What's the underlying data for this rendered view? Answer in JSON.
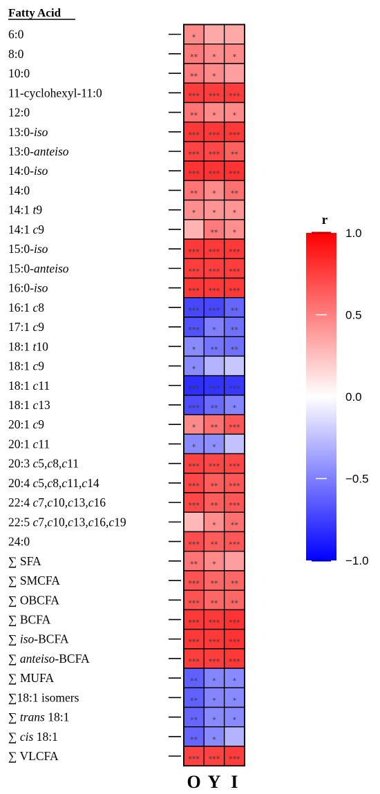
{
  "chart_data": {
    "type": "heatmap",
    "row_header": "Fatty Acid",
    "columns": [
      "O",
      "Y",
      "I"
    ],
    "legend": {
      "title": "r",
      "min": -1.0,
      "max": 1.0,
      "ticks": [
        "1.0",
        "0.5",
        "0.0",
        "−0.5",
        "−1.0"
      ],
      "tick_values": [
        1.0,
        0.5,
        0.0,
        -0.5,
        -1.0
      ],
      "colors": {
        "low": "#0000ff",
        "mid": "#ffffff",
        "high": "#ff0000"
      },
      "placement": "right"
    },
    "rows": [
      {
        "label": [
          [
            "6:0",
            false
          ]
        ],
        "values": [
          0.46,
          0.34,
          0.34
        ],
        "stars": [
          "*",
          "",
          ""
        ]
      },
      {
        "label": [
          [
            "8:0",
            false
          ]
        ],
        "values": [
          0.52,
          0.46,
          0.46
        ],
        "stars": [
          "**",
          "*",
          "*"
        ]
      },
      {
        "label": [
          [
            "10:0",
            false
          ]
        ],
        "values": [
          0.52,
          0.46,
          0.38
        ],
        "stars": [
          "**",
          "*",
          ""
        ]
      },
      {
        "label": [
          [
            "11-cyclohexyl-11:0",
            false
          ]
        ],
        "values": [
          0.76,
          0.76,
          0.76
        ],
        "stars": [
          "***",
          "***",
          "***"
        ]
      },
      {
        "label": [
          [
            "12:0",
            false
          ]
        ],
        "values": [
          0.54,
          0.46,
          0.46
        ],
        "stars": [
          "**",
          "*",
          "*"
        ]
      },
      {
        "label": [
          [
            "13:0-",
            false
          ],
          [
            "iso",
            true
          ]
        ],
        "values": [
          0.78,
          0.78,
          0.78
        ],
        "stars": [
          "***",
          "***",
          "***"
        ]
      },
      {
        "label": [
          [
            "13:0-",
            false
          ],
          [
            "anteiso",
            true
          ]
        ],
        "values": [
          0.74,
          0.72,
          0.62
        ],
        "stars": [
          "***",
          "***",
          "**"
        ]
      },
      {
        "label": [
          [
            "14:0-",
            false
          ],
          [
            "iso",
            true
          ]
        ],
        "values": [
          0.8,
          0.8,
          0.8
        ],
        "stars": [
          "***",
          "***",
          "***"
        ]
      },
      {
        "label": [
          [
            "14:0",
            false
          ]
        ],
        "values": [
          0.54,
          0.46,
          0.56
        ],
        "stars": [
          "**",
          "*",
          "**"
        ]
      },
      {
        "label": [
          [
            "14:1 ",
            false
          ],
          [
            "t",
            true
          ],
          [
            "9",
            false
          ]
        ],
        "values": [
          0.44,
          0.42,
          0.42
        ],
        "stars": [
          "*",
          "*",
          "*"
        ]
      },
      {
        "label": [
          [
            "14:1 ",
            false
          ],
          [
            "c",
            true
          ],
          [
            "9",
            false
          ]
        ],
        "values": [
          0.3,
          0.52,
          0.44
        ],
        "stars": [
          "",
          "**",
          "*"
        ]
      },
      {
        "label": [
          [
            "15:0-",
            false
          ],
          [
            "iso",
            true
          ]
        ],
        "values": [
          0.78,
          0.78,
          0.78
        ],
        "stars": [
          "***",
          "***",
          "***"
        ]
      },
      {
        "label": [
          [
            "15:0-",
            false
          ],
          [
            "anteiso",
            true
          ]
        ],
        "values": [
          0.76,
          0.76,
          0.76
        ],
        "stars": [
          "***",
          "***",
          "***"
        ]
      },
      {
        "label": [
          [
            "16:0-",
            false
          ],
          [
            "iso",
            true
          ]
        ],
        "values": [
          0.78,
          0.78,
          0.78
        ],
        "stars": [
          "***",
          "***",
          "***"
        ]
      },
      {
        "label": [
          [
            "16:1 ",
            false
          ],
          [
            "c",
            true
          ],
          [
            "8",
            false
          ]
        ],
        "values": [
          -0.72,
          -0.72,
          -0.6
        ],
        "stars": [
          "***",
          "***",
          "**"
        ]
      },
      {
        "label": [
          [
            "17:1 ",
            false
          ],
          [
            "c",
            true
          ],
          [
            "9",
            false
          ]
        ],
        "values": [
          -0.68,
          -0.5,
          -0.56
        ],
        "stars": [
          "***",
          "*",
          "**"
        ]
      },
      {
        "label": [
          [
            "18:1 ",
            false
          ],
          [
            "t",
            true
          ],
          [
            "10",
            false
          ]
        ],
        "values": [
          -0.46,
          -0.54,
          -0.56
        ],
        "stars": [
          "*",
          "**",
          "**"
        ]
      },
      {
        "label": [
          [
            "18:1 ",
            false
          ],
          [
            "c",
            true
          ],
          [
            "9",
            false
          ]
        ],
        "values": [
          -0.46,
          -0.3,
          -0.22
        ],
        "stars": [
          "*",
          "",
          ""
        ]
      },
      {
        "label": [
          [
            "18:1 ",
            false
          ],
          [
            "c",
            true
          ],
          [
            "11",
            false
          ]
        ],
        "values": [
          -0.82,
          -0.8,
          -0.78
        ],
        "stars": [
          "***",
          "***",
          "***"
        ]
      },
      {
        "label": [
          [
            "18:1 ",
            false
          ],
          [
            "c",
            true
          ],
          [
            "13",
            false
          ]
        ],
        "values": [
          -0.7,
          -0.58,
          -0.48
        ],
        "stars": [
          "***",
          "**",
          "*"
        ]
      },
      {
        "label": [
          [
            "20:1 ",
            false
          ],
          [
            "c",
            true
          ],
          [
            "9",
            false
          ]
        ],
        "values": [
          0.46,
          0.56,
          0.66
        ],
        "stars": [
          "*",
          "**",
          "***"
        ]
      },
      {
        "label": [
          [
            "20:1 ",
            false
          ],
          [
            "c",
            true
          ],
          [
            "11",
            false
          ]
        ],
        "values": [
          -0.46,
          -0.44,
          -0.24
        ],
        "stars": [
          "*",
          "*",
          ""
        ]
      },
      {
        "label": [
          [
            "20:3 ",
            false
          ],
          [
            "c",
            true
          ],
          [
            "5,",
            false
          ],
          [
            "c",
            true
          ],
          [
            "8,",
            false
          ],
          [
            "c",
            true
          ],
          [
            "11",
            false
          ]
        ],
        "values": [
          0.74,
          0.72,
          0.72
        ],
        "stars": [
          "***",
          "***",
          "***"
        ]
      },
      {
        "label": [
          [
            "20:4 ",
            false
          ],
          [
            "c",
            true
          ],
          [
            "5,",
            false
          ],
          [
            "c",
            true
          ],
          [
            "8,",
            false
          ],
          [
            "c",
            true
          ],
          [
            "11,",
            false
          ],
          [
            "c",
            true
          ],
          [
            "14",
            false
          ]
        ],
        "values": [
          0.72,
          0.64,
          0.66
        ],
        "stars": [
          "***",
          "**",
          "***"
        ]
      },
      {
        "label": [
          [
            "22:4 ",
            false
          ],
          [
            "c",
            true
          ],
          [
            "7,",
            false
          ],
          [
            "c",
            true
          ],
          [
            "10,",
            false
          ],
          [
            "c",
            true
          ],
          [
            "13,",
            false
          ],
          [
            "c",
            true
          ],
          [
            "16",
            false
          ]
        ],
        "values": [
          0.72,
          0.64,
          0.66
        ],
        "stars": [
          "***",
          "**",
          "***"
        ]
      },
      {
        "label": [
          [
            "22:5 ",
            false
          ],
          [
            "c",
            true
          ],
          [
            "7,",
            false
          ],
          [
            "c",
            true
          ],
          [
            "10,",
            false
          ],
          [
            "c",
            true
          ],
          [
            "13,",
            false
          ],
          [
            "c",
            true
          ],
          [
            "16,",
            false
          ],
          [
            "c",
            true
          ],
          [
            "19",
            false
          ]
        ],
        "values": [
          0.28,
          0.44,
          0.56
        ],
        "stars": [
          "",
          "*",
          "**"
        ]
      },
      {
        "label": [
          [
            "24:0",
            false
          ]
        ],
        "values": [
          0.7,
          0.64,
          0.66
        ],
        "stars": [
          "***",
          "**",
          "***"
        ]
      },
      {
        "label": [
          [
            "∑ SFA",
            false
          ]
        ],
        "values": [
          0.54,
          0.46,
          0.38
        ],
        "stars": [
          "**",
          "*",
          ""
        ]
      },
      {
        "label": [
          [
            "∑ SMCFA",
            false
          ]
        ],
        "values": [
          0.68,
          0.6,
          0.6
        ],
        "stars": [
          "***",
          "**",
          "**"
        ]
      },
      {
        "label": [
          [
            "∑ OBCFA",
            false
          ]
        ],
        "values": [
          0.68,
          0.6,
          0.6
        ],
        "stars": [
          "***",
          "**",
          "**"
        ]
      },
      {
        "label": [
          [
            "∑ BCFA",
            false
          ]
        ],
        "values": [
          0.78,
          0.78,
          0.8
        ],
        "stars": [
          "***",
          "***",
          "***"
        ]
      },
      {
        "label": [
          [
            "∑ ",
            false
          ],
          [
            "iso",
            true
          ],
          [
            "-BCFA",
            false
          ]
        ],
        "values": [
          0.78,
          0.78,
          0.8
        ],
        "stars": [
          "***",
          "***",
          "***"
        ]
      },
      {
        "label": [
          [
            "∑ ",
            false
          ],
          [
            "anteiso",
            true
          ],
          [
            "-BCFA",
            false
          ]
        ],
        "values": [
          0.76,
          0.76,
          0.78
        ],
        "stars": [
          "***",
          "***",
          "***"
        ]
      },
      {
        "label": [
          [
            "∑ MUFA",
            false
          ]
        ],
        "values": [
          -0.62,
          -0.48,
          -0.46
        ],
        "stars": [
          "**",
          "*",
          "*"
        ]
      },
      {
        "label": [
          [
            "∑18:1 isomers",
            false
          ]
        ],
        "values": [
          -0.62,
          -0.48,
          -0.46
        ],
        "stars": [
          "**",
          "*",
          "*"
        ]
      },
      {
        "label": [
          [
            "∑ ",
            false
          ],
          [
            "trans",
            true
          ],
          [
            " 18:1",
            false
          ]
        ],
        "values": [
          -0.6,
          -0.46,
          -0.46
        ],
        "stars": [
          "**",
          "*",
          "*"
        ]
      },
      {
        "label": [
          [
            "∑ ",
            false
          ],
          [
            "cis",
            true
          ],
          [
            " 18:1",
            false
          ]
        ],
        "values": [
          -0.6,
          -0.46,
          -0.3
        ],
        "stars": [
          "**",
          "*",
          ""
        ]
      },
      {
        "label": [
          [
            "∑ VLCFA",
            false
          ]
        ],
        "values": [
          0.74,
          0.74,
          0.76
        ],
        "stars": [
          "***",
          "***",
          "***"
        ]
      }
    ]
  }
}
